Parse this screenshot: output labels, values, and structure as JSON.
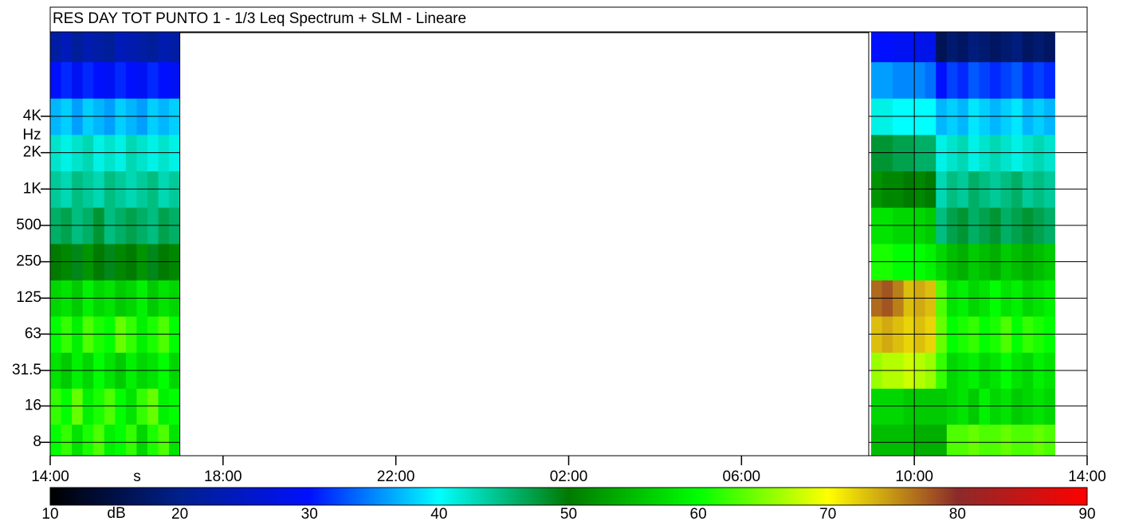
{
  "chart_data": {
    "type": "heatmap",
    "title": "RES DAY TOT PUNTO 1 - 1/3 Leq Spectrum + SLM - Lineare",
    "x_label": "s",
    "y_label": "Hz",
    "colorbar_label": "dB",
    "xlim": [
      0,
      24
    ],
    "xticks": [
      {
        "value": 0,
        "label": "14:00"
      },
      {
        "value": 4,
        "label": "18:00"
      },
      {
        "value": 8,
        "label": "22:00"
      },
      {
        "value": 12,
        "label": "02:00"
      },
      {
        "value": 16,
        "label": "06:00"
      },
      {
        "value": 20,
        "label": "10:00"
      },
      {
        "value": 24,
        "label": "14:00"
      }
    ],
    "ylim": [
      6.2,
      20000
    ],
    "log_y": true,
    "yticks": [
      8,
      16,
      31.5,
      63,
      125,
      250,
      500,
      {
        "value": 1000,
        "label": "1K"
      },
      {
        "value": 2000,
        "label": "2K"
      },
      {
        "value": 4000,
        "label": "4K"
      }
    ],
    "grid": true,
    "x": [
      0.125,
      0.375,
      0.625,
      0.875,
      1.125,
      1.375,
      1.625,
      1.875,
      2.125,
      2.375,
      2.625,
      2.875,
      19.125,
      19.375,
      19.625,
      19.875,
      20.125,
      20.375,
      20.625,
      20.875,
      21.125,
      21.375,
      21.625,
      21.875,
      22.125,
      22.375,
      22.625,
      22.875,
      23.125
    ],
    "y": [
      8,
      16,
      31.5,
      63,
      125,
      250,
      500,
      1000,
      2000,
      4000,
      8000,
      16000
    ],
    "z": [
      [
        60,
        62,
        58,
        61,
        63,
        59,
        60,
        62,
        57,
        61,
        63,
        58,
        55,
        55,
        55,
        55,
        54,
        54,
        54,
        63,
        63,
        64,
        63,
        63,
        64,
        63,
        63,
        64,
        63
      ],
      [
        62,
        60,
        64,
        59,
        61,
        63,
        60,
        58,
        62,
        64,
        59,
        60,
        57,
        57,
        57,
        56,
        56,
        56,
        56,
        57,
        58,
        56,
        59,
        57,
        58,
        56,
        57,
        58,
        57
      ],
      [
        58,
        56,
        59,
        57,
        60,
        58,
        56,
        59,
        57,
        58,
        60,
        57,
        66,
        67,
        67,
        68,
        67,
        66,
        62,
        57,
        58,
        59,
        57,
        58,
        60,
        58,
        57,
        59,
        58
      ],
      [
        60,
        62,
        59,
        63,
        61,
        60,
        64,
        62,
        59,
        61,
        63,
        60,
        73,
        74,
        73,
        72,
        73,
        72,
        64,
        60,
        61,
        62,
        60,
        61,
        63,
        60,
        62,
        61,
        60
      ],
      [
        57,
        58,
        56,
        59,
        57,
        58,
        56,
        57,
        59,
        56,
        58,
        57,
        77,
        78,
        76,
        73,
        74,
        73,
        63,
        58,
        59,
        57,
        58,
        60,
        58,
        59,
        57,
        58,
        59
      ],
      [
        50,
        51,
        49,
        52,
        50,
        49,
        51,
        50,
        52,
        49,
        50,
        51,
        61,
        61,
        60,
        60,
        60,
        59,
        57,
        55,
        54,
        56,
        55,
        54,
        56,
        55,
        54,
        55,
        56
      ],
      [
        46,
        47,
        45,
        46,
        48,
        45,
        46,
        47,
        46,
        45,
        47,
        46,
        58,
        58,
        57,
        57,
        57,
        56,
        45,
        47,
        48,
        46,
        47,
        48,
        46,
        47,
        48,
        47,
        46
      ],
      [
        44,
        43,
        45,
        44,
        43,
        45,
        44,
        43,
        44,
        45,
        43,
        44,
        52,
        51,
        51,
        50,
        51,
        50,
        43,
        45,
        44,
        46,
        45,
        44,
        45,
        46,
        44,
        45,
        44
      ],
      [
        42,
        41,
        42,
        43,
        41,
        42,
        41,
        43,
        42,
        41,
        42,
        41,
        48,
        48,
        47,
        47,
        46,
        46,
        41,
        42,
        43,
        41,
        42,
        43,
        42,
        41,
        42,
        43,
        42
      ],
      [
        37,
        38,
        36,
        38,
        37,
        36,
        38,
        37,
        36,
        38,
        37,
        38,
        41,
        41,
        40,
        40,
        40,
        40,
        37,
        38,
        37,
        39,
        38,
        37,
        38,
        39,
        37,
        38,
        37
      ],
      [
        30,
        31,
        29,
        31,
        30,
        29,
        31,
        30,
        29,
        31,
        30,
        29,
        36,
        36,
        35,
        35,
        35,
        34,
        30,
        32,
        31,
        33,
        32,
        31,
        32,
        33,
        31,
        32,
        31
      ],
      [
        22,
        24,
        21,
        23,
        22,
        21,
        24,
        23,
        22,
        21,
        23,
        22,
        30,
        30,
        29,
        29,
        28,
        28,
        16,
        18,
        17,
        19,
        18,
        17,
        18,
        19,
        17,
        18,
        17
      ]
    ],
    "clim": [
      10,
      90
    ],
    "cticks": [
      10,
      20,
      30,
      40,
      50,
      60,
      70,
      80,
      90
    ],
    "colorscale": [
      {
        "value": 10,
        "color": "#000000"
      },
      {
        "value": 20,
        "color": "#00208c"
      },
      {
        "value": 30,
        "color": "#0010ff"
      },
      {
        "value": 40,
        "color": "#00ffff"
      },
      {
        "value": 50,
        "color": "#007a00"
      },
      {
        "value": 60,
        "color": "#00ff00"
      },
      {
        "value": 70,
        "color": "#ffff00"
      },
      {
        "value": 80,
        "color": "#8b2a2a"
      },
      {
        "value": 90,
        "color": "#ff0000"
      }
    ]
  }
}
